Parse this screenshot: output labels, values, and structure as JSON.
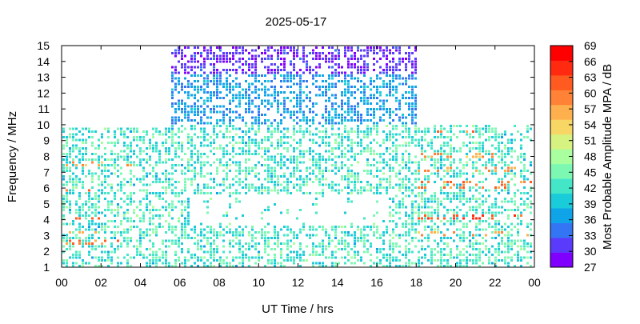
{
  "chart_data": {
    "type": "heatmap",
    "title": "2025-05-17",
    "xlabel": "UT Time / hrs",
    "ylabel": "Frequency / MHz",
    "colorbar_label": "Most Probable Amplitude MPA / dB",
    "xlim": [
      0,
      24
    ],
    "ylim": [
      1,
      15
    ],
    "x_ticks": [
      "00",
      "02",
      "04",
      "06",
      "08",
      "10",
      "12",
      "14",
      "16",
      "18",
      "20",
      "22",
      "00"
    ],
    "y_ticks": [
      "1",
      "2",
      "3",
      "4",
      "5",
      "6",
      "7",
      "8",
      "9",
      "10",
      "11",
      "12",
      "13",
      "14",
      "15"
    ],
    "colorbar_ticks": [
      "27",
      "30",
      "33",
      "36",
      "39",
      "42",
      "45",
      "48",
      "51",
      "54",
      "57",
      "60",
      "63",
      "66",
      "69"
    ],
    "colorbar_range": [
      27,
      69
    ],
    "colorbar_colors": [
      "#7f00ff",
      "#5b3bfb",
      "#3475f4",
      "#0fa4e8",
      "#1acbda",
      "#44e6c8",
      "#7cf8b3",
      "#a9fe9e",
      "#d6f280",
      "#f7d665",
      "#ffb04e",
      "#ff8236",
      "#ff5a20",
      "#ff2a10",
      "#ff0000"
    ],
    "grid": false,
    "coverage": [
      {
        "x": [
          0.0,
          5.5
        ],
        "y": [
          1.0,
          9.9
        ]
      },
      {
        "x": [
          5.5,
          18.0
        ],
        "y": [
          1.0,
          15.0
        ]
      },
      {
        "x": [
          18.0,
          24.0
        ],
        "y": [
          1.0,
          10.0
        ]
      }
    ],
    "hotspots": [
      {
        "x": [
          0.0,
          3.5
        ],
        "y": [
          4.0,
          4.3
        ],
        "mpa": 66
      },
      {
        "x": [
          0.0,
          3.0
        ],
        "y": [
          2.5,
          2.8
        ],
        "mpa": 63
      },
      {
        "x": [
          0.0,
          2.5
        ],
        "y": [
          3.2,
          3.4
        ],
        "mpa": 60
      },
      {
        "x": [
          0.0,
          3.5
        ],
        "y": [
          7.5,
          7.7
        ],
        "mpa": 60
      },
      {
        "x": [
          0.0,
          1.5
        ],
        "y": [
          5.9,
          6.1
        ],
        "mpa": 66
      },
      {
        "x": [
          18.0,
          24.0
        ],
        "y": [
          4.0,
          4.4
        ],
        "mpa": 66
      },
      {
        "x": [
          18.0,
          24.0
        ],
        "y": [
          6.1,
          6.5
        ],
        "mpa": 63
      },
      {
        "x": [
          18.0,
          24.0
        ],
        "y": [
          7.1,
          7.4
        ],
        "mpa": 60
      },
      {
        "x": [
          18.0,
          24.0
        ],
        "y": [
          3.0,
          3.3
        ],
        "mpa": 60
      },
      {
        "x": [
          18.0,
          22.0
        ],
        "y": [
          8.0,
          8.3
        ],
        "mpa": 60
      },
      {
        "x": [
          18.5,
          21.5
        ],
        "y": [
          9.6,
          9.8
        ],
        "mpa": 63
      }
    ]
  }
}
